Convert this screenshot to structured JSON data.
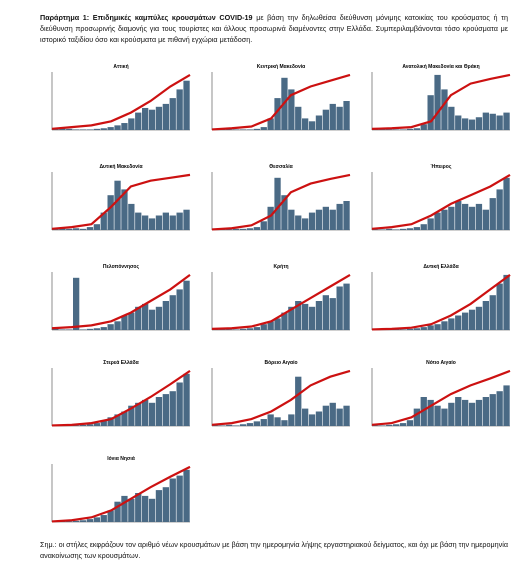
{
  "header": {
    "label": "Παράρτημα 1: Επιδημικές καμπύλες κρουσμάτων COVID-19",
    "text": "με βάση την δηλωθείσα διεύθυνση μόνιμης κατοικίας του κρούσματος ή τη διεύθυνση προσωρινής διαμονής για τους τουρίστες και άλλους προσωρινά διαμένοντες στην Ελλάδα. Συμπεριλαμβάνονται τόσο κρούσματα με ιστορικό ταξιδίου όσο και κρούσματα με πιθανή εγχώρια μετάδοση."
  },
  "charts": [
    {
      "title": "Αττική",
      "bars": [
        2,
        3,
        2,
        1,
        1,
        1,
        2,
        3,
        5,
        8,
        12,
        20,
        30,
        38,
        35,
        40,
        45,
        55,
        70,
        85
      ],
      "line": [
        2,
        5,
        8,
        15,
        30,
        50,
        75,
        95
      ]
    },
    {
      "title": "Κεντρική Μακεδονία",
      "bars": [
        1,
        2,
        1,
        1,
        1,
        1,
        2,
        5,
        20,
        55,
        90,
        70,
        40,
        20,
        15,
        25,
        35,
        45,
        40,
        50
      ],
      "line": [
        1,
        3,
        6,
        20,
        60,
        75,
        85,
        95
      ]
    },
    {
      "title": "Ανατολική Μακεδονία και Θράκη",
      "bars": [
        1,
        1,
        1,
        1,
        1,
        2,
        3,
        10,
        60,
        95,
        70,
        40,
        25,
        20,
        18,
        22,
        30,
        28,
        25,
        30
      ],
      "line": [
        2,
        3,
        5,
        15,
        60,
        80,
        88,
        95
      ]
    },
    {
      "title": "Δυτική Μακεδονία",
      "bars": [
        2,
        3,
        2,
        3,
        2,
        5,
        10,
        30,
        60,
        85,
        70,
        45,
        30,
        25,
        20,
        25,
        30,
        25,
        30,
        35
      ],
      "line": [
        2,
        5,
        10,
        40,
        75,
        85,
        90,
        95
      ]
    },
    {
      "title": "Θεσσαλία",
      "bars": [
        1,
        1,
        1,
        2,
        2,
        3,
        5,
        15,
        40,
        90,
        60,
        35,
        25,
        20,
        30,
        35,
        40,
        35,
        45,
        50
      ],
      "line": [
        1,
        3,
        8,
        25,
        65,
        80,
        88,
        95
      ]
    },
    {
      "title": "Ήπειρος",
      "bars": [
        1,
        1,
        2,
        1,
        2,
        3,
        5,
        10,
        20,
        30,
        35,
        40,
        50,
        45,
        40,
        45,
        35,
        55,
        70,
        90
      ],
      "line": [
        2,
        5,
        10,
        25,
        45,
        60,
        75,
        95
      ]
    },
    {
      "title": "Πελοπόννησος",
      "bars": [
        2,
        1,
        1,
        90,
        1,
        2,
        3,
        5,
        10,
        15,
        25,
        30,
        40,
        45,
        35,
        40,
        50,
        60,
        70,
        85
      ],
      "line": [
        3,
        5,
        8,
        15,
        30,
        50,
        70,
        95
      ]
    },
    {
      "title": "Κρήτη",
      "bars": [
        1,
        1,
        1,
        1,
        2,
        3,
        5,
        10,
        15,
        20,
        30,
        40,
        50,
        45,
        40,
        50,
        60,
        55,
        75,
        80
      ],
      "line": [
        2,
        3,
        6,
        15,
        35,
        55,
        75,
        95
      ]
    },
    {
      "title": "Δυτική Ελλάδα",
      "bars": [
        1,
        1,
        1,
        1,
        1,
        2,
        3,
        5,
        8,
        10,
        15,
        20,
        25,
        30,
        35,
        40,
        50,
        60,
        80,
        95
      ],
      "line": [
        1,
        2,
        4,
        10,
        25,
        45,
        70,
        95
      ]
    },
    {
      "title": "Στερεά Ελλάδα",
      "bars": [
        1,
        1,
        1,
        1,
        2,
        3,
        5,
        10,
        15,
        20,
        25,
        35,
        40,
        45,
        40,
        50,
        55,
        60,
        75,
        90
      ],
      "line": [
        1,
        2,
        5,
        12,
        30,
        50,
        72,
        95
      ]
    },
    {
      "title": "Βόρειο Αιγαίο",
      "bars": [
        1,
        1,
        2,
        1,
        3,
        5,
        8,
        12,
        20,
        15,
        10,
        20,
        85,
        30,
        20,
        25,
        35,
        40,
        30,
        35
      ],
      "line": [
        2,
        5,
        12,
        25,
        45,
        70,
        85,
        95
      ]
    },
    {
      "title": "Νότιο Αιγαίο",
      "bars": [
        1,
        1,
        2,
        3,
        5,
        10,
        30,
        50,
        45,
        35,
        30,
        40,
        50,
        45,
        40,
        45,
        50,
        55,
        60,
        70
      ],
      "line": [
        2,
        5,
        15,
        35,
        55,
        70,
        82,
        95
      ]
    },
    {
      "title": "Ιόνια Νησιά",
      "bars": [
        1,
        1,
        1,
        2,
        3,
        5,
        8,
        12,
        20,
        35,
        45,
        40,
        50,
        45,
        40,
        55,
        60,
        75,
        80,
        90
      ],
      "line": [
        1,
        3,
        8,
        20,
        40,
        60,
        78,
        95
      ]
    }
  ],
  "scale": {
    "ylim": [
      0,
      100
    ],
    "bar_color": "#4a6a85",
    "line_color": "#cc1111"
  },
  "note": "Σημ.: οι στήλες εκφράζουν τον αριθμό νέων κρουσμάτων με βάση την ημερομηνία λήψης εργαστηριακού δείγματος, και όχι με βάση την ημερομηνία ανακοίνωσης των κρουσμάτων."
}
